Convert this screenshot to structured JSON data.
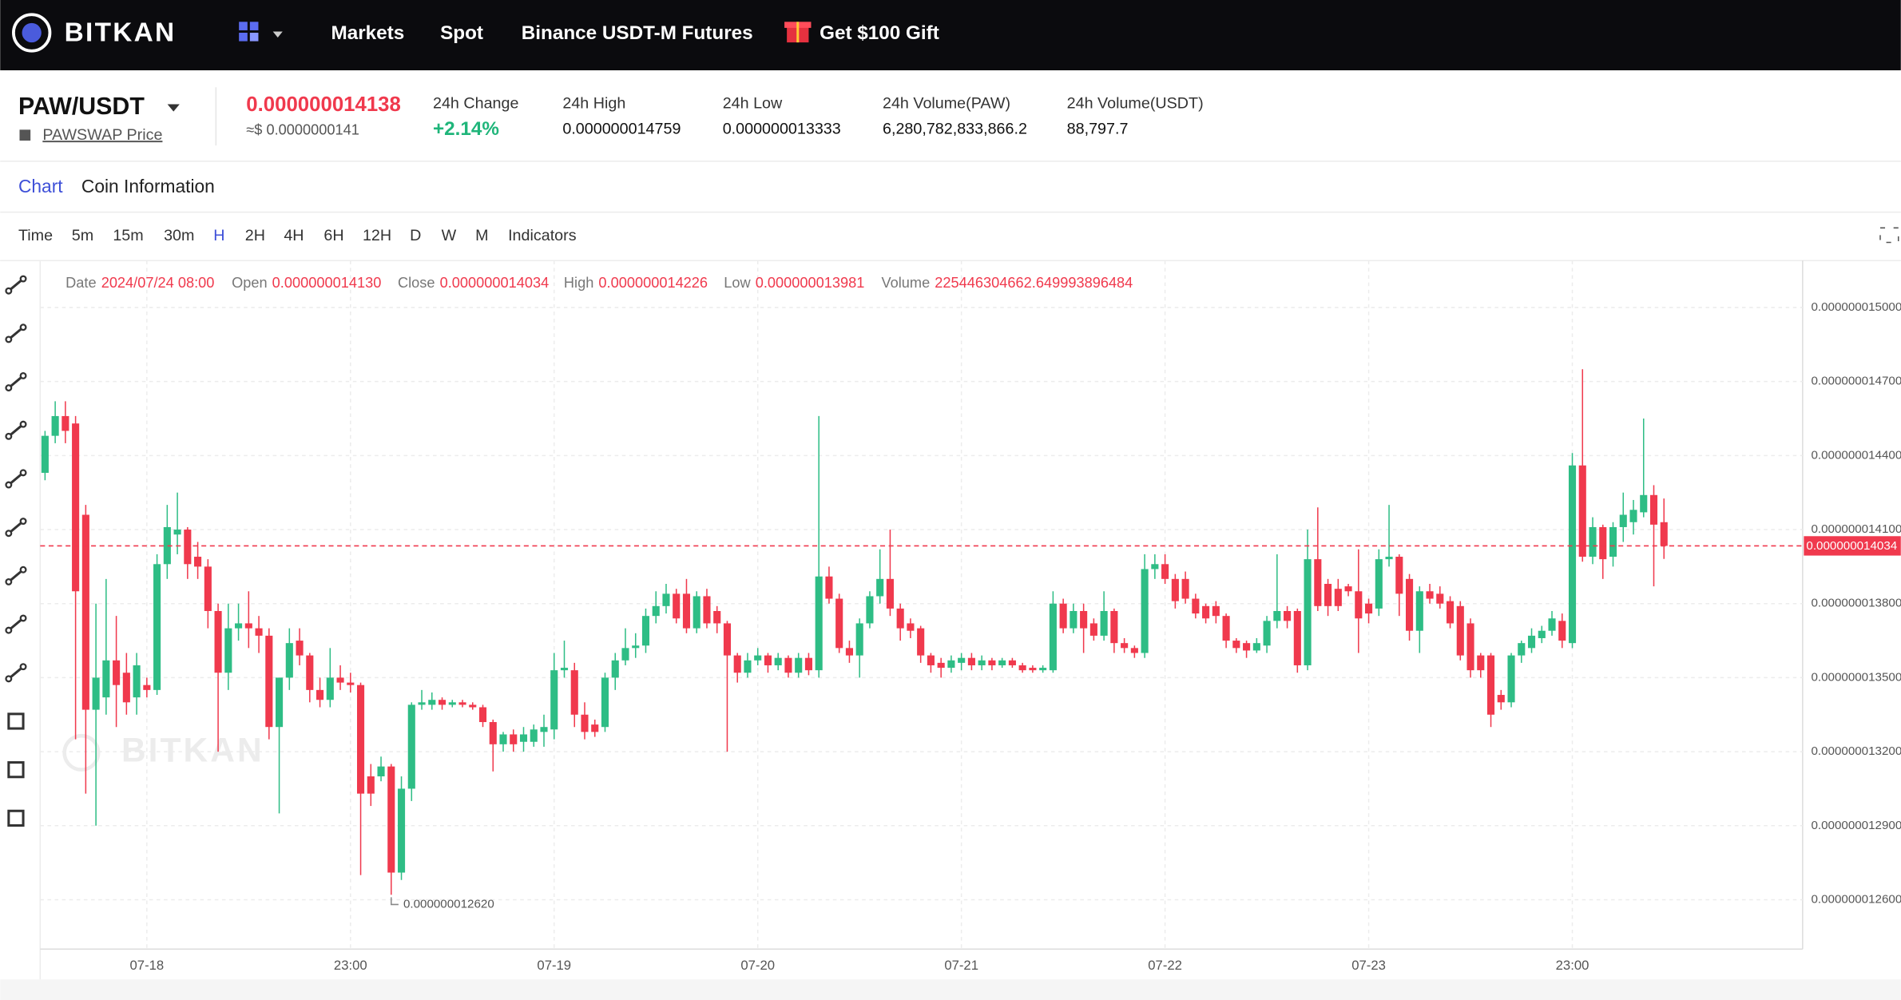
{
  "nav": {
    "brand": "BITKAN",
    "items": [
      "Markets",
      "Spot",
      "Binance USDT-M Futures"
    ],
    "gift": "Get $100 Gift"
  },
  "ticker": {
    "pair": "PAW/USDT",
    "source": "PAWSWAP Price",
    "price": "0.000000014138",
    "price_usd": "≈$ 0.0000000141",
    "stats": [
      {
        "label": "24h Change",
        "value": "+2.14%"
      },
      {
        "label": "24h High",
        "value": "0.000000014759"
      },
      {
        "label": "24h Low",
        "value": "0.000000013333"
      },
      {
        "label": "24h Volume(PAW)",
        "value": "6,280,782,833,866.2"
      },
      {
        "label": "24h Volume(USDT)",
        "value": "88,797.7"
      }
    ]
  },
  "tabs": [
    "Chart",
    "Coin Information"
  ],
  "timeframes": [
    "Time",
    "5m",
    "15m",
    "30m",
    "H",
    "2H",
    "4H",
    "6H",
    "12H",
    "D",
    "W",
    "M",
    "Indicators"
  ],
  "ohlc_bar": [
    {
      "label": "Date",
      "value": "2024/07/24 08:00"
    },
    {
      "label": "Open",
      "value": "0.000000014130"
    },
    {
      "label": "Close",
      "value": "0.000000014034"
    },
    {
      "label": "High",
      "value": "0.000000014226"
    },
    {
      "label": "Low",
      "value": "0.000000013981"
    },
    {
      "label": "Volume",
      "value": "225446304662.649993896484"
    }
  ],
  "chart_data": {
    "type": "candlestick",
    "up_color": "#2ebd85",
    "down_color": "#f0394d",
    "grid": true,
    "watermark": "BITKAN",
    "last_price_label": "0.000000014034",
    "low_label": "0.000000012620",
    "ylim": [
      1.24e-08,
      1.519e-08
    ],
    "yticks": [
      {
        "value": 1.5e-08,
        "label": "0.000000015000"
      },
      {
        "value": 1.47e-08,
        "label": "0.000000014700"
      },
      {
        "value": 1.44e-08,
        "label": "0.000000014400"
      },
      {
        "value": 1.41e-08,
        "label": "0.000000014100"
      },
      {
        "value": 1.38e-08,
        "label": "0.000000013800"
      },
      {
        "value": 1.35e-08,
        "label": "0.000000013500"
      },
      {
        "value": 1.32e-08,
        "label": "0.000000013200"
      },
      {
        "value": 1.29e-08,
        "label": "0.000000012900"
      },
      {
        "value": 1.26e-08,
        "label": "0.000000012600"
      }
    ],
    "categories": [
      null,
      null,
      null,
      null,
      null,
      null,
      null,
      null,
      null,
      null,
      "07-18",
      null,
      null,
      null,
      null,
      null,
      null,
      null,
      null,
      null,
      null,
      null,
      null,
      null,
      null,
      null,
      null,
      null,
      null,
      null,
      "23:00",
      null,
      null,
      null,
      null,
      null,
      null,
      null,
      null,
      null,
      null,
      null,
      null,
      null,
      null,
      null,
      null,
      null,
      null,
      null,
      "07-19",
      null,
      null,
      null,
      null,
      null,
      null,
      null,
      null,
      null,
      null,
      null,
      null,
      null,
      null,
      null,
      null,
      null,
      null,
      null,
      "07-20",
      null,
      null,
      null,
      null,
      null,
      null,
      null,
      null,
      null,
      null,
      null,
      null,
      null,
      null,
      null,
      null,
      null,
      null,
      null,
      "07-21",
      null,
      null,
      null,
      null,
      null,
      null,
      null,
      null,
      null,
      null,
      null,
      null,
      null,
      null,
      null,
      null,
      null,
      null,
      null,
      "07-22",
      null,
      null,
      null,
      null,
      null,
      null,
      null,
      null,
      null,
      null,
      null,
      null,
      null,
      null,
      null,
      null,
      null,
      null,
      null,
      "07-23",
      null,
      null,
      null,
      null,
      null,
      null,
      null,
      null,
      null,
      null,
      null,
      null,
      null,
      null,
      null,
      null,
      null,
      null,
      null,
      "23:00",
      null,
      null,
      null,
      null,
      null,
      null,
      null,
      null,
      null
    ],
    "open": [
      1.433e-08,
      1.448e-08,
      1.456e-08,
      1.453e-08,
      1.416e-08,
      1.337e-08,
      1.342e-08,
      1.357e-08,
      1.352e-08,
      1.342e-08,
      1.347e-08,
      1.345e-08,
      1.396e-08,
      1.408e-08,
      1.41e-08,
      1.399e-08,
      1.395e-08,
      1.377e-08,
      1.352e-08,
      1.37e-08,
      1.372e-08,
      1.37e-08,
      1.367e-08,
      1.33e-08,
      1.35e-08,
      1.365e-08,
      1.359e-08,
      1.345e-08,
      1.341e-08,
      1.35e-08,
      1.348e-08,
      1.347e-08,
      1.31e-08,
      1.31e-08,
      1.314e-08,
      1.271e-08,
      1.305e-08,
      1.339e-08,
      1.339e-08,
      1.341e-08,
      1.339e-08,
      1.34e-08,
      1.339e-08,
      1.338e-08,
      1.332e-08,
      1.323e-08,
      1.327e-08,
      1.324e-08,
      1.324e-08,
      1.328e-08,
      1.329e-08,
      1.353e-08,
      1.353e-08,
      1.335e-08,
      1.331e-08,
      1.33e-08,
      1.35e-08,
      1.357e-08,
      1.362e-08,
      1.363e-08,
      1.375e-08,
      1.379e-08,
      1.384e-08,
      1.384e-08,
      1.37e-08,
      1.383e-08,
      1.377e-08,
      1.372e-08,
      1.359e-08,
      1.352e-08,
      1.357e-08,
      1.359e-08,
      1.355e-08,
      1.358e-08,
      1.352e-08,
      1.358e-08,
      1.353e-08,
      1.391e-08,
      1.382e-08,
      1.362e-08,
      1.359e-08,
      1.372e-08,
      1.383e-08,
      1.39e-08,
      1.378e-08,
      1.372e-08,
      1.37e-08,
      1.359e-08,
      1.356e-08,
      1.354e-08,
      1.356e-08,
      1.358e-08,
      1.355e-08,
      1.357e-08,
      1.355e-08,
      1.357e-08,
      1.355e-08,
      1.354e-08,
      1.353e-08,
      1.353e-08,
      1.38e-08,
      1.37e-08,
      1.377e-08,
      1.372e-08,
      1.367e-08,
      1.377e-08,
      1.364e-08,
      1.362e-08,
      1.36e-08,
      1.394e-08,
      1.396e-08,
      1.39e-08,
      1.39e-08,
      1.382e-08,
      1.379e-08,
      1.379e-08,
      1.375e-08,
      1.365e-08,
      1.364e-08,
      1.361e-08,
      1.363e-08,
      1.373e-08,
      1.377e-08,
      1.377e-08,
      1.355e-08,
      1.398e-08,
      1.388e-08,
      1.386e-08,
      1.387e-08,
      1.385e-08,
      1.38e-08,
      1.378e-08,
      1.398e-08,
      1.399e-08,
      1.39e-08,
      1.369e-08,
      1.385e-08,
      1.384e-08,
      1.381e-08,
      1.379e-08,
      1.372e-08,
      1.359e-08,
      1.359e-08,
      1.343e-08,
      1.34e-08,
      1.359e-08,
      1.362e-08,
      1.366e-08,
      1.369e-08,
      1.373e-08,
      1.364e-08,
      1.436e-08,
      1.399e-08,
      1.411e-08,
      1.399e-08,
      1.411e-08,
      1.413e-08,
      1.417e-08,
      1.424e-08,
      1.413e-08
    ],
    "close": [
      1.448e-08,
      1.456e-08,
      1.45e-08,
      1.385e-08,
      1.337e-08,
      1.35e-08,
      1.357e-08,
      1.347e-08,
      1.34e-08,
      1.355e-08,
      1.345e-08,
      1.396e-08,
      1.411e-08,
      1.41e-08,
      1.396e-08,
      1.395e-08,
      1.377e-08,
      1.352e-08,
      1.37e-08,
      1.372e-08,
      1.37e-08,
      1.367e-08,
      1.33e-08,
      1.35e-08,
      1.364e-08,
      1.359e-08,
      1.345e-08,
      1.341e-08,
      1.35e-08,
      1.348e-08,
      1.347e-08,
      1.303e-08,
      1.303e-08,
      1.314e-08,
      1.271e-08,
      1.305e-08,
      1.339e-08,
      1.34e-08,
      1.341e-08,
      1.339e-08,
      1.34e-08,
      1.339e-08,
      1.338e-08,
      1.332e-08,
      1.323e-08,
      1.327e-08,
      1.323e-08,
      1.327e-08,
      1.329e-08,
      1.33e-08,
      1.353e-08,
      1.354e-08,
      1.335e-08,
      1.328e-08,
      1.328e-08,
      1.35e-08,
      1.357e-08,
      1.362e-08,
      1.363e-08,
      1.375e-08,
      1.379e-08,
      1.384e-08,
      1.374e-08,
      1.37e-08,
      1.383e-08,
      1.372e-08,
      1.372e-08,
      1.359e-08,
      1.352e-08,
      1.357e-08,
      1.359e-08,
      1.355e-08,
      1.358e-08,
      1.352e-08,
      1.358e-08,
      1.353e-08,
      1.391e-08,
      1.382e-08,
      1.362e-08,
      1.359e-08,
      1.372e-08,
      1.383e-08,
      1.39e-08,
      1.378e-08,
      1.37e-08,
      1.369e-08,
      1.359e-08,
      1.355e-08,
      1.354e-08,
      1.357e-08,
      1.358e-08,
      1.355e-08,
      1.357e-08,
      1.355e-08,
      1.357e-08,
      1.355e-08,
      1.353e-08,
      1.353e-08,
      1.354e-08,
      1.38e-08,
      1.37e-08,
      1.377e-08,
      1.37e-08,
      1.367e-08,
      1.377e-08,
      1.364e-08,
      1.362e-08,
      1.36e-08,
      1.394e-08,
      1.396e-08,
      1.39e-08,
      1.381e-08,
      1.382e-08,
      1.376e-08,
      1.374e-08,
      1.375e-08,
      1.365e-08,
      1.362e-08,
      1.361e-08,
      1.364e-08,
      1.373e-08,
      1.377e-08,
      1.373e-08,
      1.355e-08,
      1.398e-08,
      1.379e-08,
      1.379e-08,
      1.379e-08,
      1.385e-08,
      1.374e-08,
      1.376e-08,
      1.398e-08,
      1.399e-08,
      1.384e-08,
      1.369e-08,
      1.385e-08,
      1.382e-08,
      1.38e-08,
      1.372e-08,
      1.359e-08,
      1.353e-08,
      1.353e-08,
      1.335e-08,
      1.34e-08,
      1.359e-08,
      1.364e-08,
      1.367e-08,
      1.369e-08,
      1.374e-08,
      1.365e-08,
      1.436e-08,
      1.399e-08,
      1.411e-08,
      1.398e-08,
      1.411e-08,
      1.416e-08,
      1.418e-08,
      1.424e-08,
      1.412e-08,
      1.4034e-08
    ],
    "high": [
      1.45e-08,
      1.462e-08,
      1.462e-08,
      1.456e-08,
      1.42e-08,
      1.38e-08,
      1.39e-08,
      1.375e-08,
      1.36e-08,
      1.36e-08,
      1.35e-08,
      1.4e-08,
      1.42e-08,
      1.425e-08,
      1.411e-08,
      1.405e-08,
      1.398e-08,
      1.38e-08,
      1.38e-08,
      1.38e-08,
      1.385e-08,
      1.375e-08,
      1.37e-08,
      1.35e-08,
      1.37e-08,
      1.37e-08,
      1.36e-08,
      1.35e-08,
      1.362e-08,
      1.355e-08,
      1.352e-08,
      1.348e-08,
      1.315e-08,
      1.318e-08,
      1.315e-08,
      1.31e-08,
      1.34e-08,
      1.345e-08,
      1.344e-08,
      1.342e-08,
      1.341e-08,
      1.341e-08,
      1.34e-08,
      1.339e-08,
      1.333e-08,
      1.328e-08,
      1.329e-08,
      1.33e-08,
      1.331e-08,
      1.335e-08,
      1.36e-08,
      1.365e-08,
      1.356e-08,
      1.34e-08,
      1.333e-08,
      1.352e-08,
      1.36e-08,
      1.37e-08,
      1.368e-08,
      1.378e-08,
      1.385e-08,
      1.388e-08,
      1.386e-08,
      1.39e-08,
      1.385e-08,
      1.386e-08,
      1.379e-08,
      1.373e-08,
      1.36e-08,
      1.36e-08,
      1.362e-08,
      1.36e-08,
      1.36e-08,
      1.359e-08,
      1.36e-08,
      1.36e-08,
      1.456e-08,
      1.395e-08,
      1.384e-08,
      1.365e-08,
      1.374e-08,
      1.385e-08,
      1.402e-08,
      1.41e-08,
      1.38e-08,
      1.374e-08,
      1.371e-08,
      1.36e-08,
      1.358e-08,
      1.359e-08,
      1.36e-08,
      1.36e-08,
      1.359e-08,
      1.358e-08,
      1.358e-08,
      1.358e-08,
      1.356e-08,
      1.355e-08,
      1.355e-08,
      1.385e-08,
      1.382e-08,
      1.38e-08,
      1.38e-08,
      1.374e-08,
      1.385e-08,
      1.378e-08,
      1.366e-08,
      1.363e-08,
      1.4e-08,
      1.4e-08,
      1.4e-08,
      1.392e-08,
      1.393e-08,
      1.384e-08,
      1.38e-08,
      1.381e-08,
      1.376e-08,
      1.366e-08,
      1.365e-08,
      1.366e-08,
      1.375e-08,
      1.4e-08,
      1.379e-08,
      1.378e-08,
      1.41e-08,
      1.419e-08,
      1.39e-08,
      1.39e-08,
      1.388e-08,
      1.402e-08,
      1.382e-08,
      1.402e-08,
      1.42e-08,
      1.4e-08,
      1.392e-08,
      1.387e-08,
      1.388e-08,
      1.387e-08,
      1.383e-08,
      1.381e-08,
      1.374e-08,
      1.36e-08,
      1.36e-08,
      1.345e-08,
      1.36e-08,
      1.365e-08,
      1.37e-08,
      1.371e-08,
      1.377e-08,
      1.376e-08,
      1.441e-08,
      1.475e-08,
      1.415e-08,
      1.412e-08,
      1.413e-08,
      1.425e-08,
      1.422e-08,
      1.455e-08,
      1.428e-08,
      1.4226e-08
    ],
    "low": [
      1.43e-08,
      1.445e-08,
      1.445e-08,
      1.325e-08,
      1.303e-08,
      1.29e-08,
      1.335e-08,
      1.33e-08,
      1.335e-08,
      1.335e-08,
      1.342e-08,
      1.343e-08,
      1.39e-08,
      1.4e-08,
      1.39e-08,
      1.39e-08,
      1.37e-08,
      1.32e-08,
      1.345e-08,
      1.365e-08,
      1.362e-08,
      1.36e-08,
      1.325e-08,
      1.295e-08,
      1.345e-08,
      1.355e-08,
      1.34e-08,
      1.338e-08,
      1.338e-08,
      1.345e-08,
      1.344e-08,
      1.27e-08,
      1.298e-08,
      1.308e-08,
      1.262e-08,
      1.268e-08,
      1.3e-08,
      1.337e-08,
      1.337e-08,
      1.337e-08,
      1.338e-08,
      1.338e-08,
      1.337e-08,
      1.33e-08,
      1.312e-08,
      1.32e-08,
      1.32e-08,
      1.32e-08,
      1.322e-08,
      1.322e-08,
      1.325e-08,
      1.35e-08,
      1.33e-08,
      1.325e-08,
      1.326e-08,
      1.328e-08,
      1.345e-08,
      1.355e-08,
      1.358e-08,
      1.36e-08,
      1.372e-08,
      1.376e-08,
      1.372e-08,
      1.368e-08,
      1.368e-08,
      1.37e-08,
      1.368e-08,
      1.32e-08,
      1.348e-08,
      1.35e-08,
      1.355e-08,
      1.352e-08,
      1.353e-08,
      1.35e-08,
      1.35e-08,
      1.351e-08,
      1.35e-08,
      1.38e-08,
      1.36e-08,
      1.356e-08,
      1.35e-08,
      1.37e-08,
      1.38e-08,
      1.375e-08,
      1.365e-08,
      1.366e-08,
      1.356e-08,
      1.352e-08,
      1.35e-08,
      1.352e-08,
      1.353e-08,
      1.353e-08,
      1.353e-08,
      1.353e-08,
      1.354e-08,
      1.354e-08,
      1.352e-08,
      1.352e-08,
      1.352e-08,
      1.352e-08,
      1.368e-08,
      1.368e-08,
      1.36e-08,
      1.365e-08,
      1.365e-08,
      1.36e-08,
      1.36e-08,
      1.358e-08,
      1.358e-08,
      1.39e-08,
      1.388e-08,
      1.378e-08,
      1.38e-08,
      1.374e-08,
      1.372e-08,
      1.372e-08,
      1.362e-08,
      1.36e-08,
      1.358e-08,
      1.36e-08,
      1.36e-08,
      1.37e-08,
      1.37e-08,
      1.352e-08,
      1.353e-08,
      1.377e-08,
      1.375e-08,
      1.377e-08,
      1.383e-08,
      1.36e-08,
      1.372e-08,
      1.375e-08,
      1.395e-08,
      1.375e-08,
      1.365e-08,
      1.36e-08,
      1.38e-08,
      1.378e-08,
      1.37e-08,
      1.357e-08,
      1.35e-08,
      1.35e-08,
      1.33e-08,
      1.337e-08,
      1.338e-08,
      1.356e-08,
      1.36e-08,
      1.364e-08,
      1.367e-08,
      1.362e-08,
      1.362e-08,
      1.397e-08,
      1.396e-08,
      1.39e-08,
      1.395e-08,
      1.405e-08,
      1.408e-08,
      1.415e-08,
      1.387e-08,
      1.3981e-08
    ]
  }
}
